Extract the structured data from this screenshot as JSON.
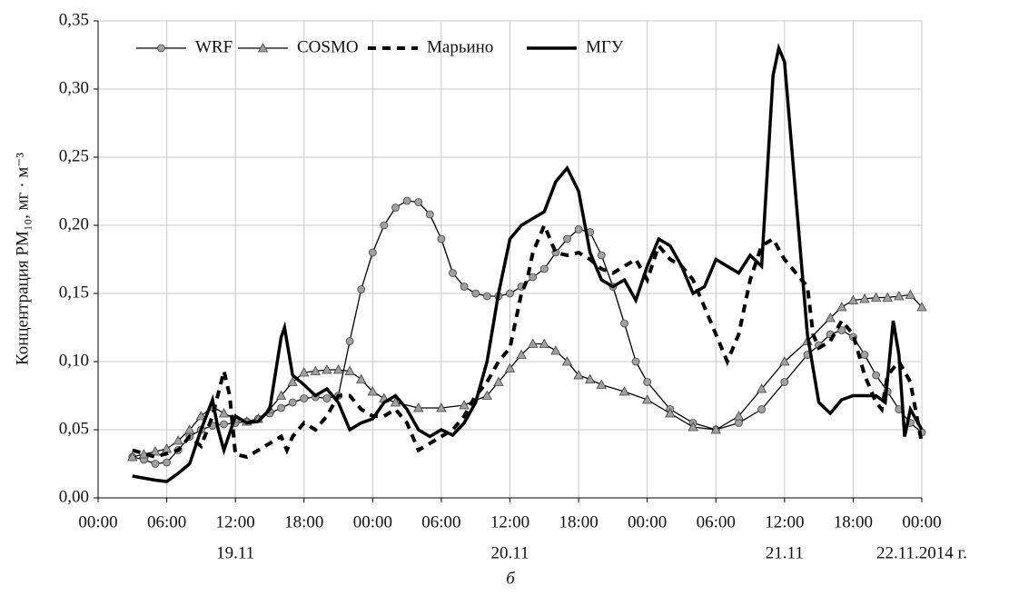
{
  "chart_data": {
    "type": "line",
    "y_label": "Концентрация PM₁₀, мг · м⁻³",
    "caption": "б",
    "xlim": [
      0,
      72
    ],
    "xticks": [
      {
        "value": 0,
        "label": "00:00"
      },
      {
        "value": 6,
        "label": "06:00"
      },
      {
        "value": 12,
        "label": "12:00"
      },
      {
        "value": 18,
        "label": "18:00"
      },
      {
        "value": 24,
        "label": "00:00"
      },
      {
        "value": 30,
        "label": "06:00"
      },
      {
        "value": 36,
        "label": "12:00"
      },
      {
        "value": 42,
        "label": "18:00"
      },
      {
        "value": 48,
        "label": "00:00"
      },
      {
        "value": 54,
        "label": "06:00"
      },
      {
        "value": 60,
        "label": "12:00"
      },
      {
        "value": 66,
        "label": "18:00"
      },
      {
        "value": 72,
        "label": "00:00"
      }
    ],
    "date_labels": [
      {
        "value": 12,
        "label": "19.11"
      },
      {
        "value": 36,
        "label": "20.11"
      },
      {
        "value": 60,
        "label": "21.11"
      },
      {
        "value": 72,
        "label": "22.11.2014 г."
      }
    ],
    "ylim": [
      0,
      0.35
    ],
    "yticks": [
      {
        "value": 0,
        "label": "0,00"
      },
      {
        "value": 0.05,
        "label": "0,05"
      },
      {
        "value": 0.1,
        "label": "0,10"
      },
      {
        "value": 0.15,
        "label": "0,15"
      },
      {
        "value": 0.2,
        "label": "0,20"
      },
      {
        "value": 0.25,
        "label": "0,25"
      },
      {
        "value": 0.3,
        "label": "0,30"
      },
      {
        "value": 0.35,
        "label": "0,35"
      }
    ],
    "grid": true,
    "legend": "top",
    "series": [
      {
        "name": "WRF",
        "color": "#000000",
        "marker": "circle",
        "marker_color": "#a0a0a0",
        "linestyle": "solid",
        "x": [
          3,
          4,
          5,
          6,
          7,
          8,
          9,
          10,
          11,
          12,
          13,
          14,
          15,
          16,
          17,
          18,
          19,
          20,
          21,
          22,
          23,
          24,
          25,
          26,
          27,
          28,
          29,
          30,
          31,
          32,
          33,
          34,
          35,
          36,
          37,
          38,
          39,
          40,
          41,
          42,
          43,
          44,
          45,
          46,
          47,
          48,
          50,
          52,
          54,
          56,
          58,
          60,
          62,
          63,
          64,
          65,
          66,
          67,
          68,
          69,
          70,
          71,
          72
        ],
        "values": [
          0.03,
          0.028,
          0.025,
          0.026,
          0.035,
          0.045,
          0.05,
          0.053,
          0.054,
          0.055,
          0.056,
          0.058,
          0.062,
          0.066,
          0.07,
          0.073,
          0.074,
          0.073,
          0.075,
          0.115,
          0.153,
          0.18,
          0.2,
          0.213,
          0.218,
          0.217,
          0.208,
          0.19,
          0.165,
          0.155,
          0.15,
          0.148,
          0.148,
          0.15,
          0.155,
          0.162,
          0.168,
          0.18,
          0.19,
          0.197,
          0.195,
          0.178,
          0.155,
          0.128,
          0.1,
          0.085,
          0.065,
          0.055,
          0.05,
          0.055,
          0.065,
          0.085,
          0.105,
          0.112,
          0.12,
          0.123,
          0.118,
          0.105,
          0.09,
          0.078,
          0.065,
          0.055,
          0.048
        ]
      },
      {
        "name": "COSMO",
        "color": "#000000",
        "marker": "triangle",
        "marker_color": "#a0a0a0",
        "linestyle": "solid",
        "x": [
          3,
          4,
          5,
          6,
          7,
          8,
          9,
          10,
          11,
          12,
          13,
          14,
          15,
          16,
          17,
          18,
          19,
          20,
          21,
          22,
          23,
          24,
          25,
          26,
          28,
          30,
          32,
          34,
          35,
          36,
          37,
          38,
          39,
          40,
          41,
          42,
          43,
          44,
          46,
          48,
          50,
          52,
          54,
          56,
          58,
          60,
          62,
          64,
          65,
          66,
          67,
          68,
          69,
          70,
          71,
          72
        ],
        "values": [
          0.03,
          0.032,
          0.034,
          0.036,
          0.042,
          0.05,
          0.06,
          0.067,
          0.062,
          0.058,
          0.056,
          0.058,
          0.065,
          0.075,
          0.085,
          0.092,
          0.093,
          0.094,
          0.094,
          0.093,
          0.087,
          0.078,
          0.073,
          0.07,
          0.066,
          0.066,
          0.068,
          0.075,
          0.085,
          0.095,
          0.105,
          0.113,
          0.113,
          0.108,
          0.1,
          0.09,
          0.087,
          0.083,
          0.078,
          0.072,
          0.062,
          0.052,
          0.05,
          0.06,
          0.08,
          0.1,
          0.115,
          0.132,
          0.14,
          0.145,
          0.146,
          0.147,
          0.147,
          0.148,
          0.149,
          0.14
        ]
      },
      {
        "name": "Марьино",
        "color": "#000000",
        "linestyle": "dashed",
        "x": [
          3,
          5,
          7,
          8,
          9,
          10,
          11,
          11.5,
          12,
          13,
          14,
          15,
          16,
          16.5,
          17,
          18,
          19,
          20,
          21,
          22,
          23,
          24,
          25,
          26,
          27,
          28,
          29,
          30,
          31,
          32,
          33,
          34,
          35,
          36,
          37,
          37.5,
          38,
          39,
          40,
          41,
          42,
          43,
          44,
          45,
          46,
          47,
          48,
          49,
          50,
          51,
          52,
          53,
          54,
          55,
          56,
          57,
          58,
          59,
          60,
          61,
          62,
          62.5,
          63,
          64,
          65,
          66,
          67,
          68,
          68.5,
          69,
          70,
          71,
          72
        ],
        "values": [
          0.035,
          0.03,
          0.035,
          0.045,
          0.038,
          0.06,
          0.093,
          0.075,
          0.032,
          0.03,
          0.035,
          0.04,
          0.045,
          0.035,
          0.045,
          0.055,
          0.05,
          0.06,
          0.075,
          0.075,
          0.065,
          0.06,
          0.06,
          0.065,
          0.055,
          0.035,
          0.04,
          0.045,
          0.05,
          0.06,
          0.075,
          0.085,
          0.1,
          0.11,
          0.15,
          0.16,
          0.18,
          0.2,
          0.18,
          0.178,
          0.18,
          0.175,
          0.168,
          0.165,
          0.17,
          0.175,
          0.16,
          0.185,
          0.175,
          0.17,
          0.16,
          0.14,
          0.12,
          0.1,
          0.12,
          0.16,
          0.185,
          0.19,
          0.175,
          0.165,
          0.155,
          0.12,
          0.11,
          0.115,
          0.13,
          0.12,
          0.09,
          0.07,
          0.065,
          0.09,
          0.1,
          0.085,
          0.04
        ]
      },
      {
        "name": "МГУ",
        "color": "#000000",
        "linestyle": "solid",
        "x": [
          3,
          5,
          6,
          7,
          8,
          9,
          10,
          10.5,
          11,
          12,
          13,
          14,
          15,
          16,
          16.3,
          17,
          18,
          19,
          20,
          21,
          22,
          23,
          24,
          25,
          26,
          27,
          28,
          29,
          30,
          31,
          32,
          33,
          34,
          35,
          36,
          37,
          38,
          39,
          40,
          41,
          42,
          43,
          44,
          45,
          46,
          47,
          48,
          49,
          50,
          51,
          52,
          53,
          54,
          55,
          56,
          57,
          58,
          59,
          59.5,
          60,
          61,
          62,
          63,
          64,
          65,
          66,
          67,
          68,
          68.8,
          69.5,
          70,
          70.5,
          71,
          72
        ],
        "values": [
          0.016,
          0.013,
          0.012,
          0.018,
          0.025,
          0.05,
          0.072,
          0.05,
          0.035,
          0.06,
          0.055,
          0.056,
          0.065,
          0.118,
          0.125,
          0.09,
          0.083,
          0.075,
          0.08,
          0.07,
          0.05,
          0.055,
          0.058,
          0.07,
          0.075,
          0.065,
          0.05,
          0.045,
          0.05,
          0.046,
          0.055,
          0.07,
          0.1,
          0.15,
          0.19,
          0.2,
          0.205,
          0.21,
          0.232,
          0.242,
          0.225,
          0.18,
          0.16,
          0.155,
          0.16,
          0.145,
          0.17,
          0.19,
          0.185,
          0.17,
          0.15,
          0.155,
          0.175,
          0.17,
          0.165,
          0.178,
          0.17,
          0.31,
          0.33,
          0.32,
          0.22,
          0.12,
          0.07,
          0.062,
          0.072,
          0.075,
          0.075,
          0.075,
          0.07,
          0.13,
          0.105,
          0.045,
          0.065,
          0.05
        ]
      }
    ]
  }
}
